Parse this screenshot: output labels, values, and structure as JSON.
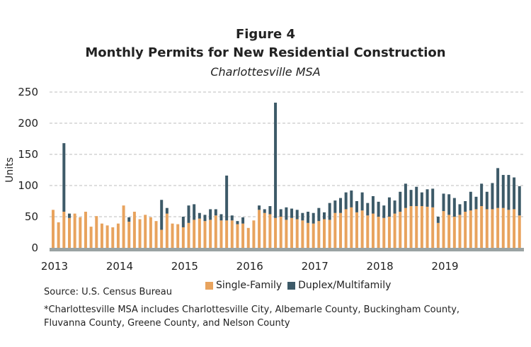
{
  "header": {
    "figure_label": "Figure 4",
    "title": "Monthly Permits for New Residential Construction",
    "subtitle": "Charlottesville MSA"
  },
  "footer": {
    "source": "Source: U.S. Census Bureau",
    "note": "*Charlottesville MSA includes Charlottesville City, Albemarle County, Buckingham County, Fluvanna County, Greene County, and Nelson County"
  },
  "colors": {
    "single_family": "#E8A35E",
    "multifamily": "#3D5A68",
    "grid": "#BDBDBD",
    "axis": "#9AA3A3"
  },
  "chart_data": {
    "type": "bar",
    "stacked": true,
    "ylabel": "Units",
    "xlabel": "",
    "ylim": [
      0,
      250
    ],
    "yticks": [
      0,
      50,
      100,
      150,
      200,
      250
    ],
    "grid": true,
    "xticks": [
      "2013",
      "2014",
      "2015",
      "2016",
      "2017",
      "2018",
      "2019"
    ],
    "legend": {
      "placement": "bottom-center",
      "entries": [
        "Single-Family",
        "Duplex/Multifamily"
      ]
    },
    "start_month": "2013-01",
    "series": [
      {
        "name": "Single-Family",
        "values": [
          61,
          41,
          58,
          48,
          55,
          49,
          58,
          34,
          51,
          39,
          36,
          33,
          39,
          68,
          42,
          58,
          46,
          53,
          49,
          43,
          29,
          55,
          39,
          38,
          33,
          40,
          45,
          47,
          43,
          45,
          52,
          44,
          44,
          44,
          38,
          39,
          32,
          44,
          61,
          56,
          54,
          48,
          50,
          45,
          48,
          46,
          44,
          40,
          39,
          43,
          46,
          45,
          56,
          56,
          62,
          65,
          57,
          60,
          52,
          55,
          50,
          48,
          50,
          55,
          58,
          64,
          67,
          67,
          67,
          66,
          65,
          40,
          59,
          53,
          50,
          53,
          58,
          60,
          62,
          67,
          62,
          62,
          64,
          64,
          61,
          62,
          52
        ]
      },
      {
        "name": "Duplex/Multifamily",
        "values": [
          0,
          0,
          110,
          7,
          0,
          0,
          0,
          0,
          0,
          0,
          0,
          0,
          0,
          0,
          7,
          0,
          0,
          0,
          0,
          0,
          48,
          9,
          0,
          0,
          17,
          28,
          25,
          9,
          10,
          17,
          10,
          10,
          72,
          8,
          5,
          10,
          0,
          0,
          7,
          6,
          13,
          185,
          12,
          20,
          15,
          15,
          12,
          18,
          17,
          21,
          11,
          27,
          20,
          24,
          27,
          27,
          18,
          29,
          20,
          28,
          24,
          20,
          31,
          21,
          32,
          39,
          26,
          31,
          22,
          28,
          30,
          10,
          28,
          33,
          30,
          17,
          17,
          30,
          20,
          36,
          28,
          42,
          64,
          53,
          56,
          51,
          47
        ]
      }
    ]
  }
}
